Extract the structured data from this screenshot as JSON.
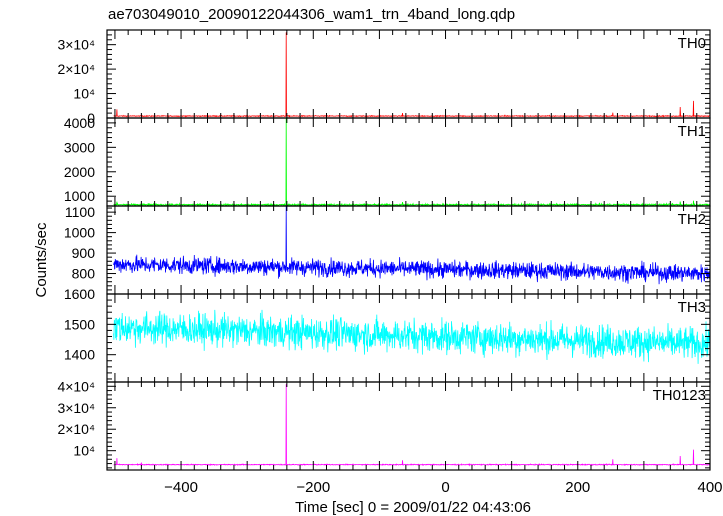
{
  "title": "ae703049010_20090122044306_wam1_trn_4band_long.qdp",
  "xlabel": "Time [sec] 0 = 2009/01/22 04:43:06",
  "ylabel": "Counts/sec",
  "colors": {
    "TH0": "#ff0000",
    "TH1": "#00ff00",
    "TH2": "#0000ff",
    "TH3": "#00ffff",
    "TH0123": "#ff00ff",
    "axis": "#000000"
  },
  "chart_data": {
    "type": "line",
    "x_range": [
      -512,
      400
    ],
    "x_ticks": [
      {
        "value": -400,
        "label": "−400"
      },
      {
        "value": -200,
        "label": "−200"
      },
      {
        "value": 0,
        "label": "0"
      },
      {
        "value": 200,
        "label": "200"
      },
      {
        "value": 400,
        "label": "400"
      }
    ],
    "panels": [
      {
        "name": "TH0",
        "color": "#ff0000",
        "ylim": [
          0,
          36000
        ],
        "y_ticks": [
          {
            "value": 0,
            "label": "0"
          },
          {
            "value": 10000,
            "label": "10⁴"
          },
          {
            "value": 20000,
            "label": "2×10⁴"
          },
          {
            "value": 30000,
            "label": "3×10⁴"
          }
        ],
        "baseline": 800,
        "noise": 120,
        "spikes": [
          [
            -497,
            3500
          ],
          [
            -460,
            1200
          ],
          [
            -282,
            1000
          ],
          [
            -241,
            35000
          ],
          [
            -65,
            2000
          ],
          [
            90,
            1100
          ],
          [
            142,
            900
          ],
          [
            190,
            900
          ],
          [
            253,
            2200
          ],
          [
            355,
            4500
          ],
          [
            375,
            7000
          ]
        ]
      },
      {
        "name": "TH1",
        "color": "#00ff00",
        "ylim": [
          600,
          4200
        ],
        "y_ticks": [
          {
            "value": 1000,
            "label": "1000"
          },
          {
            "value": 2000,
            "label": "2000"
          },
          {
            "value": 3000,
            "label": "3000"
          },
          {
            "value": 4000,
            "label": "4000"
          }
        ],
        "baseline": 650,
        "noise": 25,
        "spikes": [
          [
            -497,
            780
          ],
          [
            -241,
            4200
          ],
          [
            -65,
            760
          ],
          [
            355,
            780
          ],
          [
            375,
            820
          ]
        ]
      },
      {
        "name": "TH2",
        "color": "#0000ff",
        "ylim": [
          700,
          1130
        ],
        "y_ticks": [
          {
            "value": 800,
            "label": "800"
          },
          {
            "value": 900,
            "label": "900"
          },
          {
            "value": 1000,
            "label": "1000"
          },
          {
            "value": 1100,
            "label": "1100"
          }
        ],
        "baseline_start": 845,
        "baseline_end": 800,
        "noise": 30,
        "spikes": [
          [
            -241,
            1130
          ]
        ]
      },
      {
        "name": "TH3",
        "color": "#00ffff",
        "ylim": [
          1310,
          1600
        ],
        "y_ticks": [
          {
            "value": 1400,
            "label": "1400"
          },
          {
            "value": 1500,
            "label": "1500"
          },
          {
            "value": 1600,
            "label": "1600"
          }
        ],
        "baseline_start": 1490,
        "baseline_end": 1435,
        "noise": 38,
        "spikes": []
      },
      {
        "name": "TH0123",
        "color": "#ff00ff",
        "ylim": [
          1000,
          42000
        ],
        "y_ticks": [
          {
            "value": 10000,
            "label": "10⁴"
          },
          {
            "value": 20000,
            "label": "2×10⁴"
          },
          {
            "value": 30000,
            "label": "3×10⁴"
          },
          {
            "value": 40000,
            "label": "4×10⁴"
          }
        ],
        "baseline": 3500,
        "noise": 150,
        "spikes": [
          [
            -497,
            6500
          ],
          [
            -460,
            4500
          ],
          [
            -241,
            41000
          ],
          [
            -65,
            5500
          ],
          [
            253,
            6000
          ],
          [
            355,
            7500
          ],
          [
            375,
            10500
          ]
        ]
      }
    ]
  }
}
